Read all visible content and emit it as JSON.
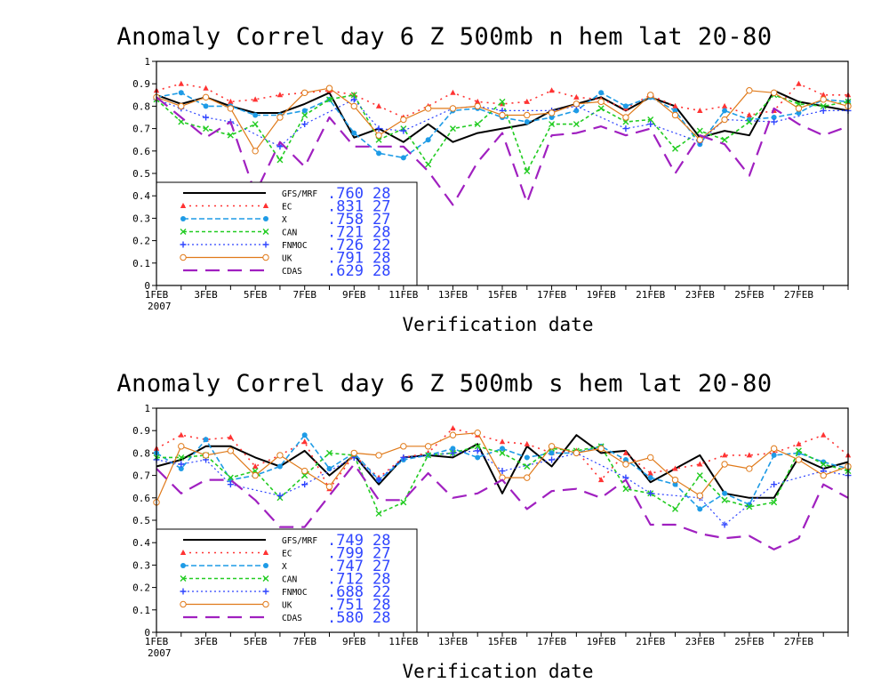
{
  "page": {
    "background": "#ffffff"
  },
  "series_styles": [
    {
      "key": "GFS/MRF",
      "color": "#000000",
      "dash": "",
      "width": 2,
      "marker": "none"
    },
    {
      "key": "EC",
      "color": "#ff3333",
      "dash": "2,5",
      "width": 1.6,
      "marker": "triangle"
    },
    {
      "key": "X",
      "color": "#1e9be6",
      "dash": "6,3",
      "width": 1.6,
      "marker": "dot"
    },
    {
      "key": "CAN",
      "color": "#22cc22",
      "dash": "4,3",
      "width": 1.6,
      "marker": "cross"
    },
    {
      "key": "FNMOC",
      "color": "#2f45ff",
      "dash": "2,3",
      "width": 1.2,
      "marker": "plus"
    },
    {
      "key": "UK",
      "color": "#e07a1a",
      "dash": "",
      "width": 1.2,
      "marker": "circle"
    },
    {
      "key": "CDAS",
      "color": "#a020c0",
      "dash": "16,9",
      "width": 2.2,
      "marker": "none"
    }
  ],
  "chart_data": [
    {
      "type": "line",
      "title": "Anomaly Correl  day 6  Z 500mb  n hem  lat 20-80",
      "xlabel": "Verification date",
      "ylabel": "",
      "ylim": [
        0,
        1
      ],
      "yticks": [
        "0",
        "0.1",
        "0.2",
        "0.3",
        "0.4",
        "0.5",
        "0.6",
        "0.7",
        "0.8",
        "0.9",
        "1"
      ],
      "xtick_labels": [
        "1FEB",
        "3FEB",
        "5FEB",
        "7FEB",
        "9FEB",
        "11FEB",
        "13FEB",
        "15FEB",
        "17FEB",
        "19FEB",
        "21FEB",
        "23FEB",
        "25FEB",
        "27FEB"
      ],
      "xtick_sub": "2007",
      "x": [
        "1FEB",
        "2FEB",
        "3FEB",
        "4FEB",
        "5FEB",
        "6FEB",
        "7FEB",
        "8FEB",
        "9FEB",
        "10FEB",
        "11FEB",
        "12FEB",
        "13FEB",
        "14FEB",
        "15FEB",
        "16FEB",
        "17FEB",
        "18FEB",
        "19FEB",
        "20FEB",
        "21FEB",
        "22FEB",
        "23FEB",
        "24FEB",
        "25FEB",
        "26FEB",
        "27FEB",
        "28FEB",
        "1MAR"
      ],
      "legend": [
        {
          "name": "GFS/MRF",
          "mean": ".760",
          "count": "28"
        },
        {
          "name": "EC",
          "mean": ".831",
          "count": "27"
        },
        {
          "name": "X",
          "mean": ".758",
          "count": "27"
        },
        {
          "name": "CAN",
          "mean": ".721",
          "count": "28"
        },
        {
          "name": "FNMOC",
          "mean": ".726",
          "count": "22"
        },
        {
          "name": "UK",
          "mean": ".791",
          "count": "28"
        },
        {
          "name": "CDAS",
          "mean": ".629",
          "count": "28"
        }
      ],
      "series": [
        {
          "name": "GFS/MRF",
          "values": [
            0.85,
            0.81,
            0.84,
            0.8,
            0.77,
            0.77,
            0.81,
            0.86,
            0.66,
            0.7,
            0.64,
            0.72,
            0.64,
            0.68,
            0.7,
            0.72,
            0.78,
            0.81,
            0.84,
            0.78,
            0.84,
            0.8,
            0.66,
            0.69,
            0.67,
            0.87,
            0.82,
            0.8,
            0.78
          ]
        },
        {
          "name": "EC",
          "values": [
            0.87,
            0.9,
            0.88,
            0.82,
            0.83,
            0.85,
            0.86,
            0.87,
            0.85,
            0.8,
            0.75,
            0.8,
            0.86,
            0.82,
            0.81,
            0.82,
            0.87,
            0.84,
            0.83,
            0.79,
            0.85,
            0.8,
            0.78,
            0.8,
            0.76,
            0.78,
            0.9,
            0.85,
            0.85
          ]
        },
        {
          "name": "X",
          "values": [
            0.84,
            0.86,
            0.8,
            0.8,
            0.76,
            0.76,
            0.78,
            0.83,
            0.68,
            0.59,
            0.57,
            0.65,
            0.78,
            0.79,
            0.75,
            0.73,
            0.75,
            0.78,
            0.86,
            0.8,
            0.84,
            0.78,
            0.63,
            0.78,
            0.74,
            0.75,
            0.77,
            0.83,
            0.82
          ]
        },
        {
          "name": "CAN",
          "values": [
            0.83,
            0.73,
            0.7,
            0.67,
            0.72,
            0.56,
            0.76,
            0.83,
            0.85,
            0.65,
            0.7,
            0.54,
            0.7,
            0.72,
            0.82,
            0.51,
            0.72,
            0.72,
            0.79,
            0.73,
            0.74,
            0.61,
            0.69,
            0.65,
            0.73,
            0.85,
            0.81,
            0.8,
            0.82
          ]
        },
        {
          "name": "FNMOC",
          "values": [
            0.83,
            0.79,
            0.75,
            0.73,
            null,
            0.62,
            0.72,
            null,
            0.83,
            0.7,
            0.69,
            null,
            0.79,
            0.8,
            0.78,
            null,
            0.78,
            0.8,
            null,
            0.7,
            0.72,
            null,
            0.64,
            0.74,
            null,
            0.73,
            null,
            0.78,
            0.78
          ]
        },
        {
          "name": "UK",
          "values": [
            0.84,
            0.8,
            0.84,
            0.79,
            0.6,
            0.75,
            0.86,
            0.88,
            0.8,
            0.67,
            0.74,
            0.79,
            0.79,
            0.8,
            0.76,
            0.76,
            0.77,
            0.81,
            0.82,
            0.75,
            0.85,
            0.76,
            0.65,
            0.74,
            0.87,
            0.86,
            0.79,
            0.83,
            0.8
          ]
        },
        {
          "name": "CDAS",
          "values": [
            0.84,
            0.75,
            0.66,
            0.73,
            0.41,
            0.64,
            0.53,
            0.75,
            0.62,
            0.62,
            0.62,
            0.51,
            0.36,
            0.55,
            0.68,
            0.37,
            0.67,
            0.68,
            0.71,
            0.67,
            0.7,
            0.5,
            0.67,
            0.63,
            0.49,
            0.79,
            0.72,
            0.67,
            0.71
          ]
        }
      ]
    },
    {
      "type": "line",
      "title": "Anomaly Correl  day 6  Z 500mb  s hem  lat 20-80",
      "xlabel": "Verification date",
      "ylabel": "",
      "ylim": [
        0,
        1
      ],
      "yticks": [
        "0",
        "0.1",
        "0.2",
        "0.3",
        "0.4",
        "0.5",
        "0.6",
        "0.7",
        "0.8",
        "0.9",
        "1"
      ],
      "xtick_labels": [
        "1FEB",
        "3FEB",
        "5FEB",
        "7FEB",
        "9FEB",
        "11FEB",
        "13FEB",
        "15FEB",
        "17FEB",
        "19FEB",
        "21FEB",
        "23FEB",
        "25FEB",
        "27FEB"
      ],
      "xtick_sub": "2007",
      "x": [
        "1FEB",
        "2FEB",
        "3FEB",
        "4FEB",
        "5FEB",
        "6FEB",
        "7FEB",
        "8FEB",
        "9FEB",
        "10FEB",
        "11FEB",
        "12FEB",
        "13FEB",
        "14FEB",
        "15FEB",
        "16FEB",
        "17FEB",
        "18FEB",
        "19FEB",
        "20FEB",
        "21FEB",
        "22FEB",
        "23FEB",
        "24FEB",
        "25FEB",
        "26FEB",
        "27FEB",
        "28FEB",
        "1MAR"
      ],
      "legend": [
        {
          "name": "GFS/MRF",
          "mean": ".749",
          "count": "28"
        },
        {
          "name": "EC",
          "mean": ".799",
          "count": "27"
        },
        {
          "name": "X",
          "mean": ".747",
          "count": "27"
        },
        {
          "name": "CAN",
          "mean": ".712",
          "count": "28"
        },
        {
          "name": "FNMOC",
          "mean": ".688",
          "count": "22"
        },
        {
          "name": "UK",
          "mean": ".751",
          "count": "28"
        },
        {
          "name": "CDAS",
          "mean": ".580",
          "count": "28"
        }
      ],
      "series": [
        {
          "name": "GFS/MRF",
          "values": [
            0.74,
            0.77,
            0.83,
            0.83,
            0.78,
            0.74,
            0.81,
            0.7,
            0.79,
            0.66,
            0.78,
            0.79,
            0.78,
            0.84,
            0.62,
            0.83,
            0.74,
            0.88,
            0.8,
            0.81,
            0.67,
            0.73,
            0.79,
            0.62,
            0.6,
            0.6,
            0.78,
            0.73,
            0.76
          ]
        },
        {
          "name": "EC",
          "values": [
            0.82,
            0.88,
            0.86,
            0.87,
            0.74,
            0.79,
            0.85,
            0.64,
            0.79,
            0.69,
            0.78,
            0.8,
            0.91,
            0.88,
            0.85,
            0.84,
            0.8,
            0.81,
            0.68,
            0.8,
            0.71,
            0.73,
            0.75,
            0.79,
            0.79,
            0.8,
            0.84,
            0.88,
            0.79
          ]
        },
        {
          "name": "X",
          "values": [
            0.8,
            0.73,
            0.86,
            0.68,
            0.7,
            0.74,
            0.88,
            0.73,
            0.8,
            0.68,
            0.77,
            0.79,
            0.82,
            0.78,
            0.82,
            0.78,
            0.8,
            0.8,
            0.83,
            0.77,
            0.69,
            0.66,
            0.55,
            0.62,
            0.57,
            0.79,
            0.8,
            0.76,
            0.73
          ]
        },
        {
          "name": "CAN",
          "values": [
            0.78,
            0.78,
            0.79,
            0.69,
            0.72,
            0.6,
            0.7,
            0.8,
            0.79,
            0.53,
            0.58,
            0.79,
            0.8,
            0.83,
            0.8,
            0.74,
            0.82,
            0.81,
            0.83,
            0.64,
            0.62,
            0.55,
            0.7,
            0.59,
            0.56,
            0.58,
            0.81,
            0.75,
            0.72
          ]
        },
        {
          "name": "FNMOC",
          "values": [
            0.77,
            0.75,
            0.77,
            0.66,
            null,
            0.61,
            0.66,
            null,
            0.78,
            0.68,
            0.78,
            null,
            0.8,
            0.81,
            0.72,
            null,
            0.77,
            0.8,
            null,
            0.69,
            0.62,
            null,
            0.6,
            0.48,
            null,
            0.66,
            null,
            0.72,
            0.7
          ]
        },
        {
          "name": "UK",
          "values": [
            0.58,
            0.83,
            0.79,
            0.81,
            0.7,
            0.79,
            0.72,
            0.65,
            0.8,
            0.79,
            0.83,
            0.83,
            0.88,
            0.89,
            0.69,
            0.69,
            0.83,
            0.8,
            0.82,
            0.75,
            0.78,
            0.68,
            0.61,
            0.75,
            0.73,
            0.82,
            0.77,
            0.7,
            0.74
          ]
        },
        {
          "name": "CDAS",
          "values": [
            0.73,
            0.62,
            0.68,
            0.68,
            0.59,
            0.47,
            0.47,
            0.61,
            0.75,
            0.59,
            0.59,
            0.71,
            0.6,
            0.62,
            0.68,
            0.55,
            0.63,
            0.64,
            0.6,
            0.68,
            0.48,
            0.48,
            0.44,
            0.42,
            0.43,
            0.37,
            0.42,
            0.66,
            0.6
          ]
        }
      ]
    }
  ]
}
